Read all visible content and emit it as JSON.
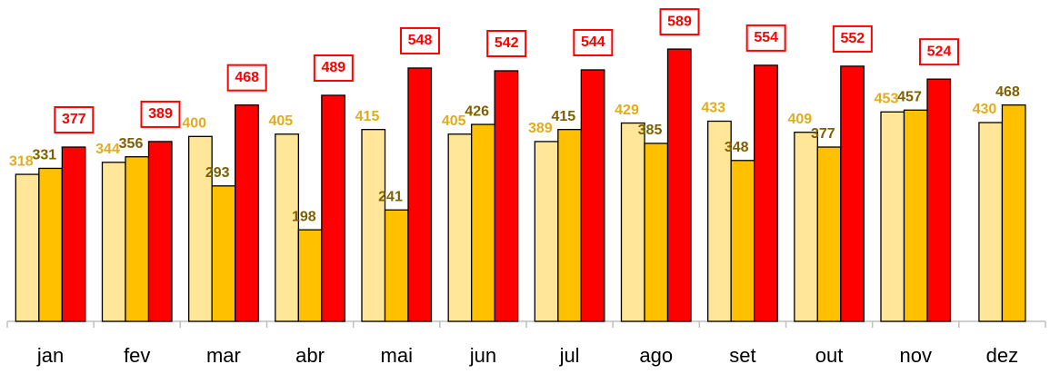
{
  "chart_data": {
    "type": "bar",
    "categories": [
      "jan",
      "fev",
      "mar",
      "abr",
      "mai",
      "jun",
      "jul",
      "ago",
      "set",
      "out",
      "nov",
      "dez"
    ],
    "series": [
      {
        "color": "#FFE699",
        "label_color": "#E1AD1E",
        "values": [
          318,
          344,
          400,
          405,
          415,
          405,
          389,
          429,
          433,
          409,
          453,
          430
        ]
      },
      {
        "color": "#FFC000",
        "label_color": "#7F6000",
        "values": [
          331,
          356,
          293,
          198,
          241,
          426,
          415,
          385,
          348,
          377,
          457,
          468
        ]
      },
      {
        "color": "#FF0000",
        "label_color": "#FF0000",
        "values": [
          377,
          389,
          468,
          489,
          548,
          542,
          544,
          589,
          554,
          552,
          524,
          null
        ]
      }
    ],
    "ylim": [
      0,
      650
    ]
  }
}
